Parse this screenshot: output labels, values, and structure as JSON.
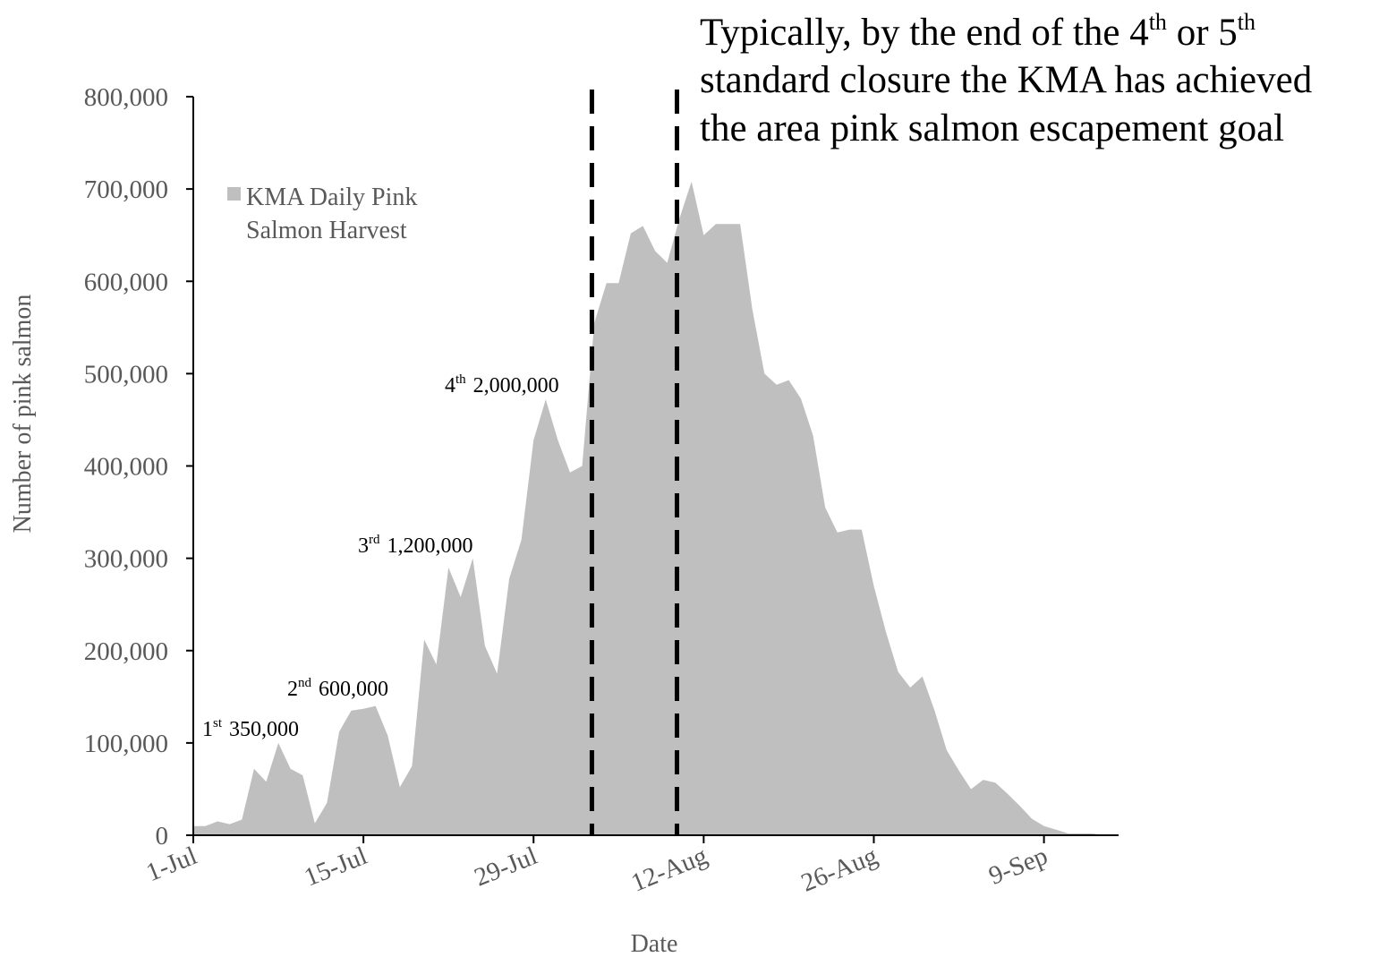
{
  "chart_data": {
    "type": "area",
    "title": "",
    "xlabel": "Date",
    "ylabel": "Number of pink salmon",
    "ylim": [
      0,
      800000
    ],
    "yticks": [
      0,
      100000,
      200000,
      300000,
      400000,
      500000,
      600000,
      700000,
      800000
    ],
    "ytick_labels": [
      "0",
      "100,000",
      "200,000",
      "300,000",
      "400,000",
      "500,000",
      "600,000",
      "700,000",
      "800,000"
    ],
    "x_start_date": "1-Jul",
    "xticks": [
      {
        "date": "1-Jul",
        "day": 0
      },
      {
        "date": "15-Jul",
        "day": 14
      },
      {
        "date": "29-Jul",
        "day": 28
      },
      {
        "date": "12-Aug",
        "day": 42
      },
      {
        "date": "26-Aug",
        "day": 56
      },
      {
        "date": "9-Sep",
        "day": 70
      }
    ],
    "xlim": [
      0,
      76
    ],
    "grid": false,
    "legend": {
      "position": "top-left",
      "line1": "KMA Daily Pink",
      "line2": "Salmon Harvest"
    },
    "series": [
      {
        "name": "KMA Daily Pink Salmon Harvest",
        "color": "#bfbfbf",
        "values": [
          10000,
          10000,
          15000,
          12000,
          17000,
          72000,
          58000,
          100000,
          72000,
          65000,
          13000,
          35000,
          112000,
          135000,
          137000,
          140000,
          108000,
          52000,
          75000,
          212000,
          185000,
          290000,
          258000,
          300000,
          205000,
          175000,
          278000,
          320000,
          428000,
          472000,
          428000,
          393000,
          400000,
          555000,
          598000,
          598000,
          652000,
          660000,
          633000,
          620000,
          668000,
          708000,
          650000,
          662000,
          662000,
          662000,
          570000,
          500000,
          488000,
          493000,
          473000,
          433000,
          355000,
          328000,
          331000,
          331000,
          270000,
          220000,
          177000,
          160000,
          172000,
          135000,
          92000,
          70000,
          50000,
          60000,
          57000,
          45000,
          32000,
          18000,
          10000,
          6000,
          2000,
          2000,
          2000,
          0
        ]
      }
    ],
    "closure_markers": [
      {
        "day": 32.8,
        "style": "dashed"
      },
      {
        "day": 39.8,
        "style": "dashed"
      }
    ],
    "annotations": [
      {
        "ordinal": "1",
        "suffix": "st",
        "amount": "350,000"
      },
      {
        "ordinal": "2",
        "suffix": "nd",
        "amount": "600,000"
      },
      {
        "ordinal": "3",
        "suffix": "rd",
        "amount": "1,200,000"
      },
      {
        "ordinal": "4",
        "suffix": "th",
        "amount": "2,000,000"
      }
    ],
    "note": {
      "line1_a": "Typically, by the end of the 4",
      "line1_sup1": "th",
      "line1_b": " or 5",
      "line1_sup2": "th",
      "line2": "standard closure the KMA has achieved",
      "line3": "the area pink salmon escapement goal"
    }
  }
}
